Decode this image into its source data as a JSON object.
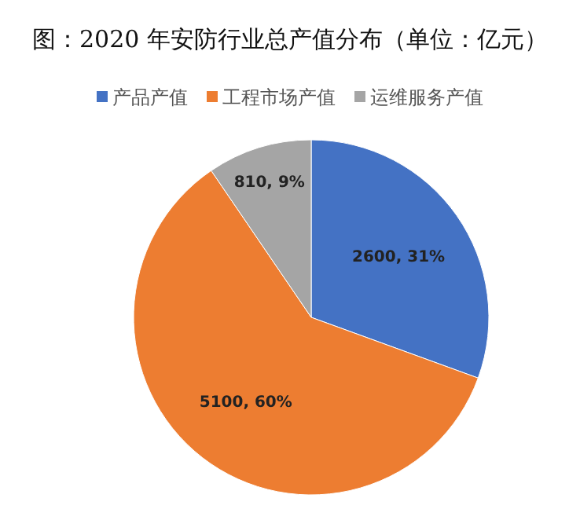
{
  "chart_data": {
    "type": "pie",
    "title": "图：2020 年安防行业总产值分布（单位：亿元）",
    "categories": [
      "产品产值",
      "工程市场产值",
      "运维服务产值"
    ],
    "values": [
      2600,
      5100,
      810
    ],
    "colors": [
      "#4472c4",
      "#ed7d31",
      "#a5a5a5"
    ],
    "value_labels": [
      "2600, 31%",
      "5100, 60%",
      "810, 9%"
    ],
    "legend": "top"
  }
}
